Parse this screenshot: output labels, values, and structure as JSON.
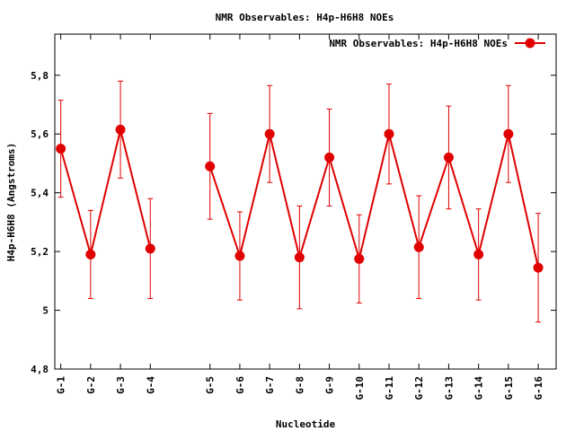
{
  "chart_data": {
    "type": "line",
    "title": "NMR Observables: H4p-H6H8 NOEs",
    "xlabel": "Nucleotide",
    "ylabel": "H4p-H6H8 (Angstroms)",
    "ylim": [
      4.8,
      5.94
    ],
    "yticks": [
      "4,8",
      "5",
      "5,2",
      "5,4",
      "5,6",
      "5,8"
    ],
    "ytick_values": [
      4.8,
      5.0,
      5.2,
      5.4,
      5.6,
      5.8
    ],
    "xlim": [
      0.8,
      17.6
    ],
    "grid": false,
    "legend_position": "top-right",
    "series": [
      {
        "name": "NMR Observables: H4p-H6H8 NOEs",
        "color": "#e00000",
        "points": [
          {
            "label": "G-1",
            "x": 1,
            "y": 5.55,
            "err": 0.165
          },
          {
            "label": "G-2",
            "x": 2,
            "y": 5.19,
            "err": 0.15
          },
          {
            "label": "G-3",
            "x": 3,
            "y": 5.615,
            "err": 0.165
          },
          {
            "label": "G-4",
            "x": 4,
            "y": 5.21,
            "err": 0.17
          },
          {
            "label": "G-5",
            "x": 6,
            "y": 5.49,
            "err": 0.18
          },
          {
            "label": "G-6",
            "x": 7,
            "y": 5.185,
            "err": 0.15
          },
          {
            "label": "G-7",
            "x": 8,
            "y": 5.6,
            "err": 0.165
          },
          {
            "label": "G-8",
            "x": 9,
            "y": 5.18,
            "err": 0.175
          },
          {
            "label": "G-9",
            "x": 10,
            "y": 5.52,
            "err": 0.165
          },
          {
            "label": "G-10",
            "x": 11,
            "y": 5.175,
            "err": 0.15
          },
          {
            "label": "G-11",
            "x": 12,
            "y": 5.6,
            "err": 0.17
          },
          {
            "label": "G-12",
            "x": 13,
            "y": 5.215,
            "err": 0.175
          },
          {
            "label": "G-13",
            "x": 14,
            "y": 5.52,
            "err": 0.175
          },
          {
            "label": "G-14",
            "x": 15,
            "y": 5.19,
            "err": 0.155
          },
          {
            "label": "G-15",
            "x": 16,
            "y": 5.6,
            "err": 0.165
          },
          {
            "label": "G-16",
            "x": 17,
            "y": 5.145,
            "err": 0.185
          }
        ]
      }
    ]
  }
}
